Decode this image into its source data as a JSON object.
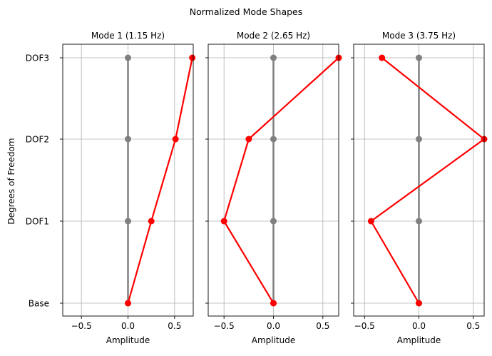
{
  "figure": {
    "title": "Normalized Mode Shapes"
  },
  "chart_data": {
    "type": "line",
    "title": "Normalized Mode Shapes",
    "ylabel": "Degrees of Freedom",
    "y_categories": [
      "Base",
      "DOF1",
      "DOF2",
      "DOF3"
    ],
    "undeformed_values": [
      0,
      0,
      0,
      0
    ],
    "colors": {
      "undeformed": "#808080",
      "mode": "#ff0000",
      "grid": "#b0b0b0"
    },
    "grid": true,
    "panels": [
      {
        "title": "Mode 1 (1.15 Hz)",
        "xlabel": "Amplitude",
        "xlim": [
          -0.7,
          0.7
        ],
        "xticks": [
          -0.5,
          0.0,
          0.5
        ],
        "xtick_labels": [
          "−0.5",
          "0.0",
          "0.5"
        ],
        "values": [
          0.0,
          0.25,
          0.51,
          0.69
        ]
      },
      {
        "title": "Mode 2 (2.65 Hz)",
        "xlabel": "Amplitude",
        "xlim": [
          -0.66,
          0.66
        ],
        "xticks": [
          -0.5,
          0.0,
          0.5
        ],
        "xtick_labels": [
          "−0.5",
          "0.0",
          "0.5"
        ],
        "values": [
          0.0,
          -0.5,
          -0.25,
          0.66
        ]
      },
      {
        "title": "Mode 3 (3.75 Hz)",
        "xlabel": "Amplitude",
        "xlim": [
          -0.6,
          0.6
        ],
        "xticks": [
          -0.5,
          0.0,
          0.5
        ],
        "xtick_labels": [
          "−0.5",
          "0.0",
          "0.5"
        ],
        "values": [
          0.0,
          -0.44,
          0.6,
          -0.34
        ]
      }
    ]
  }
}
